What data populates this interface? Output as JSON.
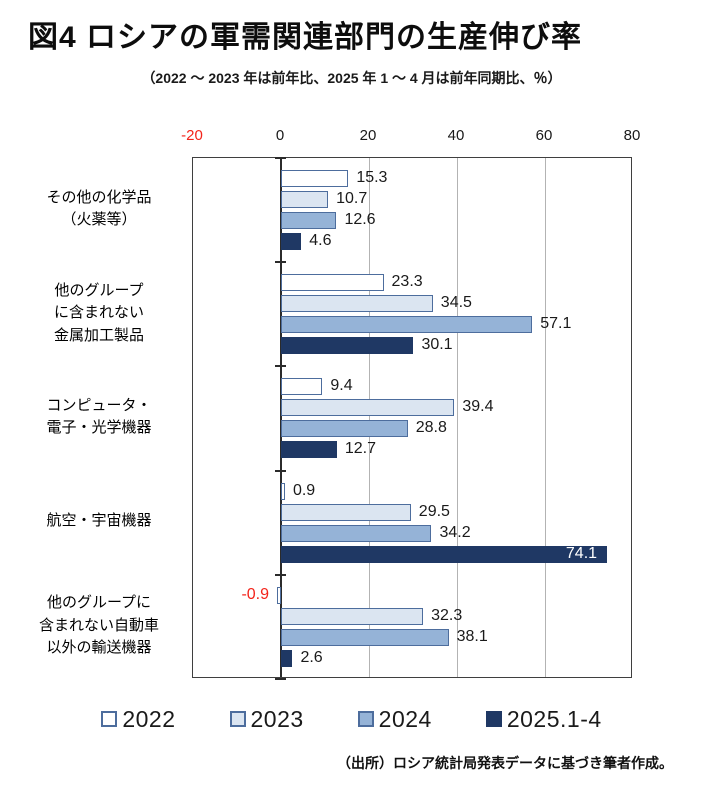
{
  "page": {
    "title": "図4 ロシアの軍需関連部門の生産伸び率",
    "subtitle": "（2022 ～ 2023 年は前年比、2025 年 1 ～ 4 月は前年同期比、％）",
    "source_note": "（出所）ロシア統計局発表データに基づき筆者作成。"
  },
  "chart_data": {
    "type": "bar",
    "orientation": "horizontal",
    "title": "図4 ロシアの軍需関連部門の生産伸び率",
    "subtitle": "（2022～2023年は前年比、2025年1～4月は前年同期比、％）",
    "categories": [
      "その他の化学品（火薬等）",
      "他のグループに含まれない金属加工製品",
      "コンピュータ・電子・光学機器",
      "航空・宇宙機器",
      "他のグループに含まれない自動車以外の輸送機器"
    ],
    "category_lines": [
      [
        "その他の化学品",
        "（火薬等）"
      ],
      [
        "他のグループ",
        "に含まれない",
        "金属加工製品"
      ],
      [
        "コンピュータ・",
        "電子・光学機器"
      ],
      [
        "航空・宇宙機器"
      ],
      [
        "他のグループに",
        "含まれない自動車",
        "以外の輸送機器"
      ]
    ],
    "series": [
      {
        "name": "2022",
        "fill": "#ffffff",
        "border": "#4d6d9d",
        "values": [
          15.3,
          23.3,
          9.4,
          0.9,
          -0.9
        ]
      },
      {
        "name": "2023",
        "fill": "#dbe5f1",
        "border": "#4d6d9d",
        "values": [
          10.7,
          34.5,
          39.4,
          29.5,
          32.3
        ]
      },
      {
        "name": "2024",
        "fill": "#95b3d7",
        "border": "#4d6d9d",
        "values": [
          12.6,
          57.1,
          28.8,
          34.2,
          38.1
        ]
      },
      {
        "name": "2025.1-4",
        "fill": "#1f3864",
        "border": "#1f3864",
        "values": [
          4.6,
          30.1,
          12.7,
          74.1,
          2.6
        ]
      }
    ],
    "xlim": [
      -20,
      80
    ],
    "x_ticks": [
      -20,
      0,
      20,
      40,
      60,
      80
    ],
    "grid": true,
    "legend_position": "bottom",
    "ylabel": "",
    "xlabel": "",
    "negative_label_color": "#f3231a",
    "inside_label_color": "#ffffff"
  }
}
